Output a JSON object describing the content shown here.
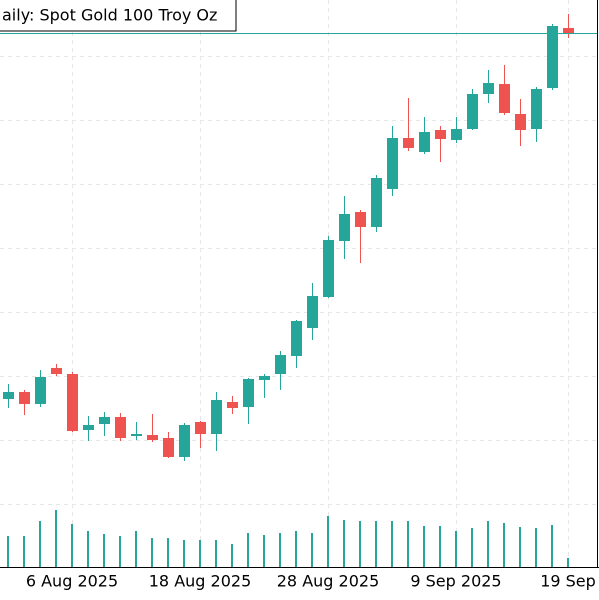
{
  "chart_data": {
    "type": "candlestick",
    "title": "aily:  Spot Gold 100 Troy Oz",
    "categories": [
      null,
      null,
      null,
      null,
      "6 Aug 2025",
      null,
      null,
      null,
      null,
      null,
      null,
      null,
      "18 Aug 2025",
      null,
      null,
      null,
      null,
      null,
      null,
      null,
      "28 Aug 2025",
      null,
      null,
      null,
      null,
      null,
      null,
      null,
      "9 Sep 2025",
      null,
      null,
      null,
      null,
      null,
      null,
      "19 Sep"
    ],
    "open": [
      3392.8,
      3398.4,
      3388.8,
      3417.6,
      3412.8,
      3368,
      3372.8,
      3378.4,
      3363.2,
      3364,
      3361.6,
      3346.4,
      3374.4,
      3364.8,
      3390.4,
      3386.4,
      3408,
      3412.8,
      3427.2,
      3449.6,
      3474.4,
      3519.2,
      3542.4,
      3530.4,
      3560.8,
      3601.6,
      3590.4,
      3608,
      3600,
      3608.8,
      3636.8,
      3644.8,
      3620.8,
      3608.8,
      3641.6,
      3689.6
    ],
    "high": [
      3404.8,
      3400,
      3416,
      3420.8,
      3414.4,
      3379.2,
      3382.4,
      3381.6,
      3374.4,
      3380.8,
      3366.4,
      3373.6,
      3375.2,
      3398.4,
      3395.2,
      3409.6,
      3412.8,
      3431.2,
      3456,
      3485.6,
      3523.2,
      3555.2,
      3544,
      3572,
      3611.2,
      3633.6,
      3618.4,
      3611.2,
      3618.4,
      3640.8,
      3656,
      3660,
      3632.8,
      3642.4,
      3692.8,
      3700.8
    ],
    "low": [
      3385.6,
      3380,
      3386.4,
      3411.2,
      3366.4,
      3359.2,
      3363.2,
      3359.2,
      3360,
      3358.4,
      3345.6,
      3343.2,
      3353.6,
      3351.2,
      3380.8,
      3372.8,
      3393.6,
      3400,
      3417.6,
      3440,
      3473.6,
      3504.8,
      3501.6,
      3526.4,
      3555.2,
      3591.2,
      3588.8,
      3582.4,
      3597.6,
      3608,
      3629.6,
      3620,
      3595.2,
      3598.4,
      3640,
      3681.6
    ],
    "close": [
      3398.4,
      3388.8,
      3410.4,
      3412.8,
      3367.2,
      3372,
      3378.4,
      3361.6,
      3364.8,
      3360,
      3346.4,
      3372,
      3364.8,
      3392,
      3385.6,
      3408.8,
      3411.2,
      3428,
      3455.2,
      3475.2,
      3520,
      3540.8,
      3530.4,
      3569.6,
      3601.6,
      3593.6,
      3606.4,
      3600.8,
      3608.8,
      3636.8,
      3645.6,
      3621.6,
      3608,
      3640.8,
      3691.2,
      3684.8
    ],
    "volume": [
      31,
      31,
      46,
      57,
      43,
      36,
      33,
      31,
      36,
      29,
      29,
      27,
      27,
      27,
      23,
      34,
      32,
      34,
      36,
      34,
      51,
      47,
      46,
      46,
      46,
      46,
      41,
      41,
      36,
      39,
      46,
      44,
      40,
      39,
      42,
      9
    ],
    "ylim": [
      3258.4,
      3712
    ],
    "volume_lim": [
      0,
      60
    ],
    "ygrid": [
      3667.2,
      3616,
      3564.8,
      3513.6,
      3462.4,
      3411.2,
      3360,
      3308.8
    ],
    "price_line": 3685.6,
    "up_color": "#26a69a",
    "down_color": "#ef5350",
    "volume_color": "#26a69a",
    "price_line_color": "#26a69a",
    "grid": true
  }
}
